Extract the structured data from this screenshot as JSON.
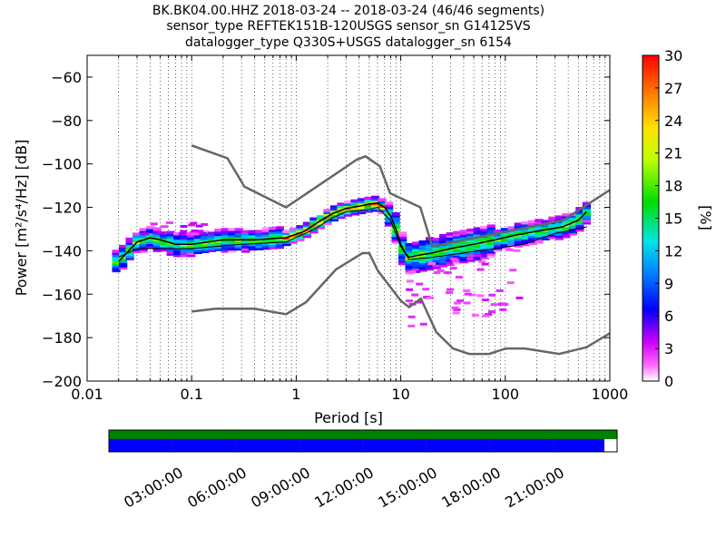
{
  "title_lines": [
    "BK.BK04.00.HHZ   2018-03-24 -- 2018-03-24  (46/46 segments)",
    "sensor_type REFTEK151B-120USGS sensor_sn G14125VS",
    "datalogger_type Q330S+USGS datalogger_sn 6154"
  ],
  "chart_data": {
    "type": "heatmap",
    "xlabel": "Period [s]",
    "ylabel": "Power [m²/s⁴/Hz] [dB]",
    "x_scale": "log",
    "xlim": [
      0.01,
      1000
    ],
    "ylim": [
      -200,
      -50
    ],
    "x_ticks": [
      {
        "value": 0.01,
        "label": "0.01"
      },
      {
        "value": 0.1,
        "label": "0.1"
      },
      {
        "value": 1,
        "label": "1"
      },
      {
        "value": 10,
        "label": "10"
      },
      {
        "value": 100,
        "label": "100"
      },
      {
        "value": 1000,
        "label": "1000"
      }
    ],
    "y_ticks": [
      {
        "value": -60,
        "label": "−60"
      },
      {
        "value": -80,
        "label": "−80"
      },
      {
        "value": -100,
        "label": "−100"
      },
      {
        "value": -120,
        "label": "−120"
      },
      {
        "value": -140,
        "label": "−140"
      },
      {
        "value": -160,
        "label": "−160"
      },
      {
        "value": -180,
        "label": "−180"
      },
      {
        "value": -200,
        "label": "−200"
      }
    ],
    "grid": "dotted vertical",
    "colorbar": {
      "label": "[%]",
      "min": 0,
      "max": 30,
      "ticks": [
        "0",
        "3",
        "6",
        "9",
        "12",
        "15",
        "18",
        "21",
        "24",
        "27",
        "30"
      ]
    },
    "noise_models": [
      {
        "name": "high",
        "points": [
          [
            0.1,
            -91.5
          ],
          [
            0.22,
            -97.4
          ],
          [
            0.32,
            -110.5
          ],
          [
            0.8,
            -120
          ],
          [
            3.8,
            -98
          ],
          [
            4.6,
            -96.5
          ],
          [
            6.3,
            -101
          ],
          [
            7.9,
            -113.5
          ],
          [
            15.4,
            -120
          ],
          [
            20,
            -138
          ],
          [
            354.8,
            -126
          ],
          [
            1000,
            -112
          ]
        ]
      },
      {
        "name": "low",
        "points": [
          [
            0.1,
            -168
          ],
          [
            0.17,
            -166.7
          ],
          [
            0.4,
            -166.7
          ],
          [
            0.8,
            -169.2
          ],
          [
            1.24,
            -163.7
          ],
          [
            2.4,
            -148.6
          ],
          [
            4.3,
            -141.1
          ],
          [
            5,
            -141.1
          ],
          [
            6,
            -149
          ],
          [
            10,
            -163
          ],
          [
            12,
            -166
          ],
          [
            15.6,
            -162
          ],
          [
            21.9,
            -177.5
          ],
          [
            31.6,
            -185
          ],
          [
            45,
            -187.5
          ],
          [
            70,
            -187.5
          ],
          [
            101,
            -185
          ],
          [
            154,
            -185
          ],
          [
            328,
            -187.5
          ],
          [
            600,
            -184.4
          ],
          [
            1000,
            -178
          ]
        ]
      }
    ],
    "mean_curve": [
      [
        0.02,
        -145
      ],
      [
        0.025,
        -140
      ],
      [
        0.03,
        -136
      ],
      [
        0.04,
        -134
      ],
      [
        0.05,
        -135
      ],
      [
        0.07,
        -137
      ],
      [
        0.1,
        -137
      ],
      [
        0.2,
        -135
      ],
      [
        0.4,
        -135
      ],
      [
        0.8,
        -134
      ],
      [
        1.2,
        -131
      ],
      [
        1.6,
        -127
      ],
      [
        2.2,
        -123
      ],
      [
        3,
        -120.5
      ],
      [
        4,
        -119.5
      ],
      [
        5,
        -118.5
      ],
      [
        6,
        -118
      ],
      [
        7,
        -120
      ],
      [
        8,
        -124
      ],
      [
        9,
        -130
      ],
      [
        10,
        -137
      ],
      [
        11,
        -141
      ],
      [
        12,
        -143
      ],
      [
        15,
        -142
      ],
      [
        20,
        -141
      ],
      [
        30,
        -139
      ],
      [
        50,
        -137
      ],
      [
        80,
        -135
      ],
      [
        120,
        -133
      ],
      [
        200,
        -131
      ],
      [
        350,
        -129
      ],
      [
        500,
        -126
      ],
      [
        600,
        -122
      ]
    ],
    "min_curve": [
      [
        0.02,
        -143
      ],
      [
        0.03,
        -139
      ],
      [
        0.05,
        -139
      ],
      [
        0.1,
        -139
      ],
      [
        0.3,
        -137
      ],
      [
        0.8,
        -136
      ],
      [
        1.5,
        -130
      ],
      [
        2.2,
        -125
      ],
      [
        3,
        -122
      ],
      [
        5,
        -121
      ],
      [
        6,
        -120
      ],
      [
        8,
        -126
      ],
      [
        10,
        -138
      ],
      [
        12,
        -144
      ],
      [
        20,
        -143
      ],
      [
        40,
        -141
      ],
      [
        80,
        -139
      ],
      [
        150,
        -137
      ],
      [
        300,
        -132
      ],
      [
        600,
        -129
      ]
    ],
    "psd_density_bands": [
      {
        "x0": 0.018,
        "x1": 0.1,
        "y_lo": -148,
        "y_hi": -124,
        "pct": 10
      },
      {
        "x0": 0.1,
        "x1": 0.7,
        "y_lo": -142,
        "y_hi": -130,
        "pct": 12
      },
      {
        "x0": 0.7,
        "x1": 6,
        "y_lo": -138,
        "y_hi": -116,
        "pct": 20
      },
      {
        "x0": 6,
        "x1": 12,
        "y_lo": -148,
        "y_hi": -116,
        "pct": 8
      },
      {
        "x0": 12,
        "x1": 80,
        "y_lo": -150,
        "y_hi": -130,
        "pct": 9
      },
      {
        "x0": 80,
        "x1": 600,
        "y_lo": -138,
        "y_hi": -120,
        "pct": 14
      }
    ],
    "timeline": {
      "ticks": [
        "03:00:00",
        "06:00:00",
        "09:00:00",
        "12:00:00",
        "15:00:00",
        "18:00:00",
        "21:00:00"
      ],
      "data_coverage_fraction": 1.0,
      "psd_coverage_fraction": 0.975,
      "data_color": "#008000",
      "psd_color": "#0000ff"
    }
  }
}
